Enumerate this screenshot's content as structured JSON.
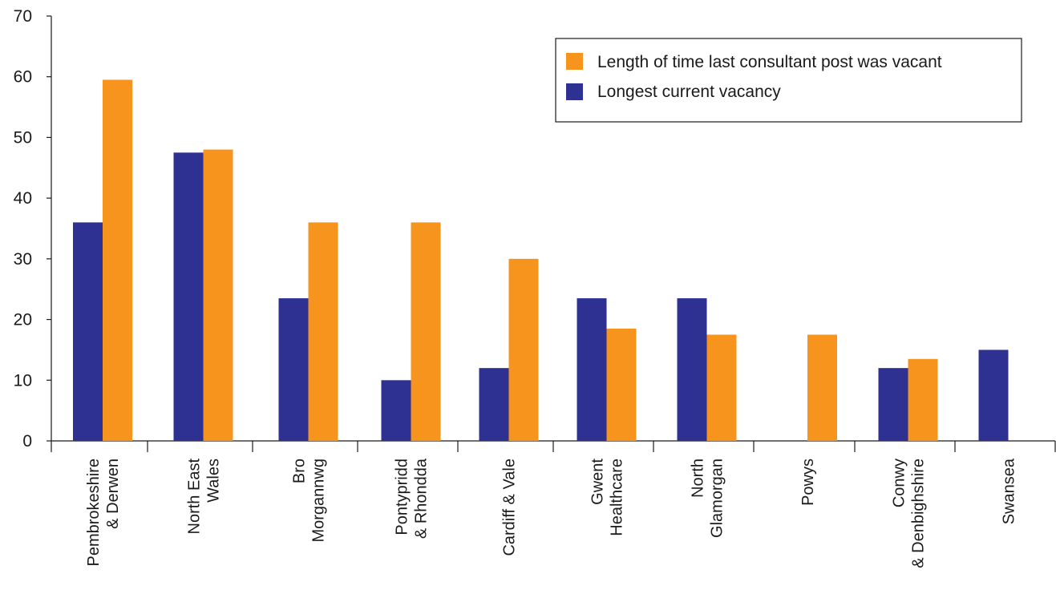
{
  "chart_data": {
    "type": "bar",
    "title": "",
    "xlabel": "",
    "ylabel": "",
    "ylim": [
      0,
      70
    ],
    "yticks": [
      0,
      10,
      20,
      30,
      40,
      50,
      60,
      70
    ],
    "grid": false,
    "legend_position": "top-right",
    "categories": [
      [
        "Pembrokeshire",
        "& Derwen"
      ],
      [
        "North East",
        "Wales"
      ],
      [
        "Bro",
        "Morgannwg"
      ],
      [
        "Pontypridd",
        "& Rhondda"
      ],
      [
        "Cardiff & Vale"
      ],
      [
        "Gwent",
        "Healthcare"
      ],
      [
        "North",
        "Glamorgan"
      ],
      [
        "Powys"
      ],
      [
        "Conwy",
        "& Denbighshire"
      ],
      [
        "Swansea"
      ]
    ],
    "series": [
      {
        "name": "Longest current vacancy",
        "color": "#2e3192",
        "values": [
          36,
          47.5,
          23.5,
          10,
          12,
          23.5,
          23.5,
          null,
          12,
          15
        ]
      },
      {
        "name": "Length of time last consultant post was vacant",
        "color": "#f7941d",
        "values": [
          59.5,
          48,
          36,
          36,
          30,
          18.5,
          17.5,
          17.5,
          13.5,
          null
        ]
      }
    ],
    "legend": [
      {
        "name": "Length of time last consultant post was vacant",
        "color": "#f7941d"
      },
      {
        "name": "Longest current vacancy",
        "color": "#2e3192"
      }
    ]
  }
}
